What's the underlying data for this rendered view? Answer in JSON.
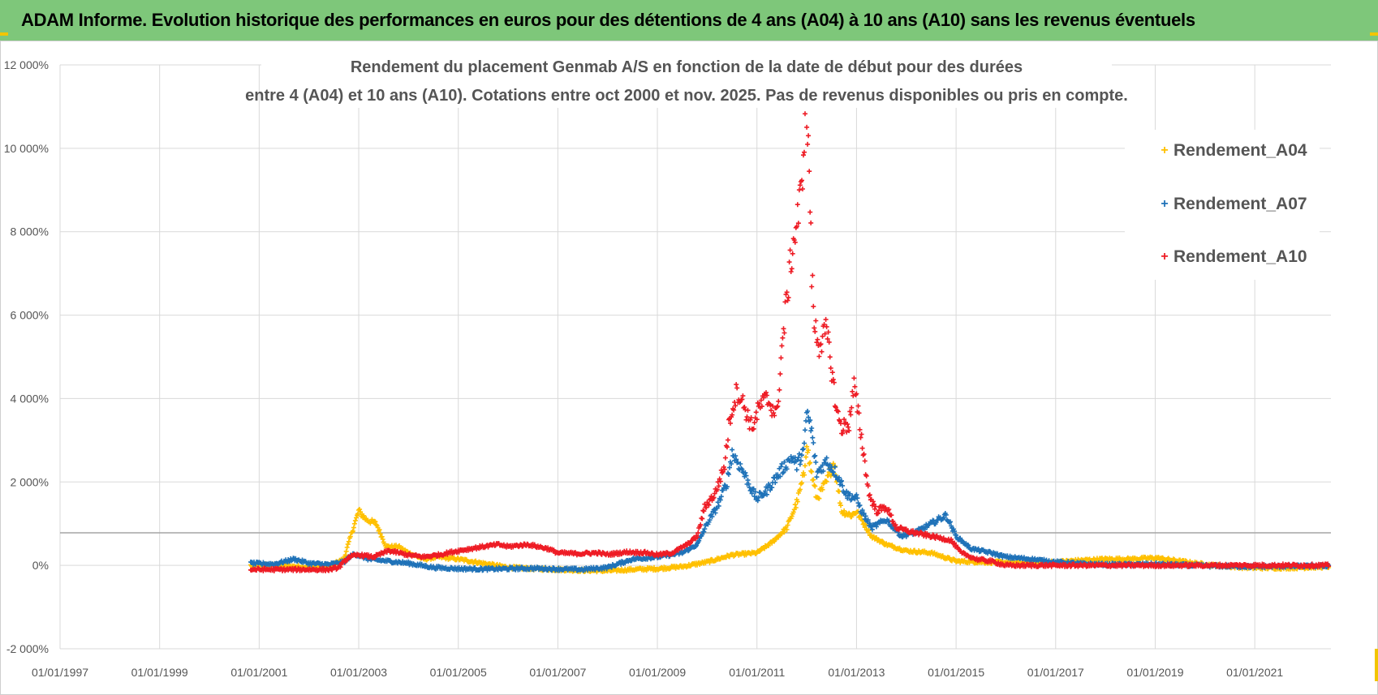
{
  "header": {
    "banner_title": "ADAM Informe. Evolution historique des performances en euros pour des détentions de 4 ans (A04) à 10 ans (A10) sans les revenus éventuels"
  },
  "colors": {
    "banner": "#7ec77a",
    "A04": "#ffc000",
    "A07": "#1f72b8",
    "A10": "#ee1c25",
    "grid": "#d9d9d9",
    "ref_line": "#a6a6a6"
  },
  "chart_data": {
    "type": "scatter",
    "title_lines": [
      "Rendement du placement Genmab A/S en fonction de la date de début pour des durées",
      "entre 4 (A04) et 10 ans (A10). Cotations entre oct 2000 et nov. 2025. Pas de revenus disponibles ou pris en compte."
    ],
    "xlabel": "",
    "ylabel": "",
    "x_range": [
      1997.0,
      2022.53
    ],
    "x_ticks": [
      "01/01/1997",
      "01/01/1999",
      "01/01/2001",
      "01/01/2003",
      "01/01/2005",
      "01/01/2007",
      "01/01/2009",
      "01/01/2011",
      "01/01/2013",
      "01/01/2015",
      "01/01/2017",
      "01/01/2019",
      "01/01/2021"
    ],
    "x_tick_years": [
      1997,
      1999,
      2001,
      2003,
      2005,
      2007,
      2009,
      2011,
      2013,
      2015,
      2017,
      2019,
      2021
    ],
    "ylim": [
      -2000,
      12000
    ],
    "y_ticks": [
      -2000,
      0,
      2000,
      4000,
      6000,
      8000,
      10000,
      12000
    ],
    "y_tick_labels": [
      "-2 000%",
      "0%",
      "2 000%",
      "4 000%",
      "6 000%",
      "8 000%",
      "10 000%",
      "12 000%"
    ],
    "reference_line_value": 780,
    "legend": [
      "Rendement_A04",
      "Rendement_A07",
      "Rendement_A10"
    ],
    "series": [
      {
        "name": "Rendement_A04",
        "points": [
          [
            2000.83,
            0
          ],
          [
            2001.2,
            10
          ],
          [
            2001.6,
            -20
          ],
          [
            2002.0,
            -40
          ],
          [
            2002.4,
            -20
          ],
          [
            2002.7,
            150
          ],
          [
            2002.85,
            750
          ],
          [
            2003.0,
            1300
          ],
          [
            2003.15,
            1100
          ],
          [
            2003.35,
            1000
          ],
          [
            2003.55,
            450
          ],
          [
            2003.8,
            450
          ],
          [
            2004.0,
            300
          ],
          [
            2004.3,
            150
          ],
          [
            2004.6,
            200
          ],
          [
            2005.0,
            150
          ],
          [
            2005.5,
            50
          ],
          [
            2006.0,
            -50
          ],
          [
            2006.5,
            -80
          ],
          [
            2007.0,
            -100
          ],
          [
            2007.5,
            -120
          ],
          [
            2008.0,
            -130
          ],
          [
            2008.5,
            -100
          ],
          [
            2009.0,
            -80
          ],
          [
            2009.5,
            -30
          ],
          [
            2010.0,
            80
          ],
          [
            2010.5,
            250
          ],
          [
            2011.0,
            300
          ],
          [
            2011.3,
            550
          ],
          [
            2011.6,
            900
          ],
          [
            2011.8,
            1500
          ],
          [
            2011.95,
            2200
          ],
          [
            2012.0,
            3000
          ],
          [
            2012.05,
            2500
          ],
          [
            2012.2,
            1600
          ],
          [
            2012.4,
            2000
          ],
          [
            2012.55,
            2500
          ],
          [
            2012.7,
            1300
          ],
          [
            2012.9,
            1200
          ],
          [
            2013.0,
            1300
          ],
          [
            2013.1,
            1100
          ],
          [
            2013.3,
            700
          ],
          [
            2013.6,
            500
          ],
          [
            2014.0,
            350
          ],
          [
            2014.5,
            300
          ],
          [
            2015.0,
            100
          ],
          [
            2015.5,
            80
          ],
          [
            2016.0,
            70
          ],
          [
            2016.5,
            60
          ],
          [
            2017.0,
            80
          ],
          [
            2017.5,
            120
          ],
          [
            2018.0,
            150
          ],
          [
            2018.5,
            150
          ],
          [
            2019.0,
            180
          ],
          [
            2019.5,
            100
          ],
          [
            2020.0,
            20
          ],
          [
            2020.5,
            -30
          ],
          [
            2021.0,
            -60
          ],
          [
            2021.5,
            -60
          ],
          [
            2022.0,
            -50
          ],
          [
            2022.5,
            -30
          ]
        ]
      },
      {
        "name": "Rendement_A07",
        "points": [
          [
            2000.83,
            50
          ],
          [
            2001.3,
            30
          ],
          [
            2001.7,
            150
          ],
          [
            2002.0,
            50
          ],
          [
            2002.4,
            20
          ],
          [
            2002.7,
            80
          ],
          [
            2002.9,
            280
          ],
          [
            2003.2,
            150
          ],
          [
            2003.6,
            100
          ],
          [
            2004.0,
            50
          ],
          [
            2004.5,
            -50
          ],
          [
            2005.0,
            -80
          ],
          [
            2005.5,
            -90
          ],
          [
            2006.0,
            -80
          ],
          [
            2006.5,
            -70
          ],
          [
            2007.0,
            -90
          ],
          [
            2007.5,
            -100
          ],
          [
            2008.0,
            -50
          ],
          [
            2008.5,
            150
          ],
          [
            2009.0,
            200
          ],
          [
            2009.5,
            300
          ],
          [
            2009.8,
            500
          ],
          [
            2010.0,
            1000
          ],
          [
            2010.2,
            1400
          ],
          [
            2010.4,
            2000
          ],
          [
            2010.5,
            2700
          ],
          [
            2010.7,
            2300
          ],
          [
            2010.9,
            1800
          ],
          [
            2011.0,
            1600
          ],
          [
            2011.2,
            1800
          ],
          [
            2011.5,
            2300
          ],
          [
            2011.7,
            2600
          ],
          [
            2011.8,
            2400
          ],
          [
            2011.95,
            2800
          ],
          [
            2012.0,
            3700
          ],
          [
            2012.1,
            3200
          ],
          [
            2012.2,
            2200
          ],
          [
            2012.4,
            2500
          ],
          [
            2012.6,
            2200
          ],
          [
            2012.8,
            1700
          ],
          [
            2013.0,
            1600
          ],
          [
            2013.1,
            1300
          ],
          [
            2013.3,
            900
          ],
          [
            2013.6,
            1100
          ],
          [
            2013.9,
            700
          ],
          [
            2014.2,
            800
          ],
          [
            2014.5,
            1000
          ],
          [
            2014.8,
            1200
          ],
          [
            2015.0,
            700
          ],
          [
            2015.3,
            400
          ],
          [
            2015.7,
            300
          ],
          [
            2016.0,
            200
          ],
          [
            2016.5,
            150
          ],
          [
            2017.0,
            80
          ],
          [
            2017.5,
            40
          ],
          [
            2018.0,
            20
          ],
          [
            2018.5,
            20
          ],
          [
            2019.0,
            30
          ],
          [
            2019.5,
            10
          ],
          [
            2020.0,
            -10
          ],
          [
            2020.5,
            -20
          ],
          [
            2021.0,
            -30
          ],
          [
            2021.5,
            -20
          ],
          [
            2022.0,
            -20
          ],
          [
            2022.5,
            -10
          ]
        ]
      },
      {
        "name": "Rendement_A10",
        "points": [
          [
            2000.83,
            -100
          ],
          [
            2001.3,
            -100
          ],
          [
            2001.7,
            -100
          ],
          [
            2002.0,
            -100
          ],
          [
            2002.4,
            -100
          ],
          [
            2002.6,
            -50
          ],
          [
            2002.8,
            200
          ],
          [
            2003.0,
            250
          ],
          [
            2003.3,
            200
          ],
          [
            2003.6,
            350
          ],
          [
            2004.0,
            250
          ],
          [
            2004.3,
            200
          ],
          [
            2004.6,
            250
          ],
          [
            2005.0,
            350
          ],
          [
            2005.5,
            450
          ],
          [
            2005.8,
            500
          ],
          [
            2006.0,
            450
          ],
          [
            2006.4,
            500
          ],
          [
            2006.8,
            400
          ],
          [
            2007.0,
            300
          ],
          [
            2007.4,
            280
          ],
          [
            2007.8,
            300
          ],
          [
            2008.0,
            260
          ],
          [
            2008.4,
            320
          ],
          [
            2008.8,
            300
          ],
          [
            2009.0,
            250
          ],
          [
            2009.3,
            300
          ],
          [
            2009.6,
            500
          ],
          [
            2009.8,
            700
          ],
          [
            2009.95,
            1400
          ],
          [
            2010.15,
            1700
          ],
          [
            2010.35,
            2400
          ],
          [
            2010.45,
            3500
          ],
          [
            2010.6,
            4200
          ],
          [
            2010.75,
            3800
          ],
          [
            2010.9,
            3300
          ],
          [
            2011.05,
            3800
          ],
          [
            2011.2,
            4000
          ],
          [
            2011.4,
            3600
          ],
          [
            2011.5,
            5200
          ],
          [
            2011.6,
            6400
          ],
          [
            2011.7,
            7500
          ],
          [
            2011.8,
            8200
          ],
          [
            2011.9,
            9000
          ],
          [
            2011.95,
            10500
          ],
          [
            2012.0,
            10900
          ],
          [
            2012.05,
            9500
          ],
          [
            2012.1,
            7000
          ],
          [
            2012.15,
            5800
          ],
          [
            2012.25,
            5300
          ],
          [
            2012.4,
            5600
          ],
          [
            2012.5,
            4700
          ],
          [
            2012.6,
            3700
          ],
          [
            2012.7,
            3300
          ],
          [
            2012.85,
            3400
          ],
          [
            2012.95,
            4300
          ],
          [
            2013.05,
            3500
          ],
          [
            2013.15,
            2600
          ],
          [
            2013.25,
            1700
          ],
          [
            2013.4,
            1300
          ],
          [
            2013.6,
            1400
          ],
          [
            2013.8,
            900
          ],
          [
            2014.1,
            800
          ],
          [
            2014.5,
            700
          ],
          [
            2014.9,
            600
          ],
          [
            2015.1,
            300
          ],
          [
            2015.4,
            150
          ],
          [
            2015.7,
            100
          ],
          [
            2016.0,
            0
          ],
          [
            2017.0,
            0
          ],
          [
            2018.0,
            0
          ],
          [
            2019.0,
            0
          ],
          [
            2020.0,
            0
          ],
          [
            2021.0,
            0
          ],
          [
            2022.0,
            0
          ],
          [
            2022.5,
            0
          ]
        ]
      }
    ]
  }
}
